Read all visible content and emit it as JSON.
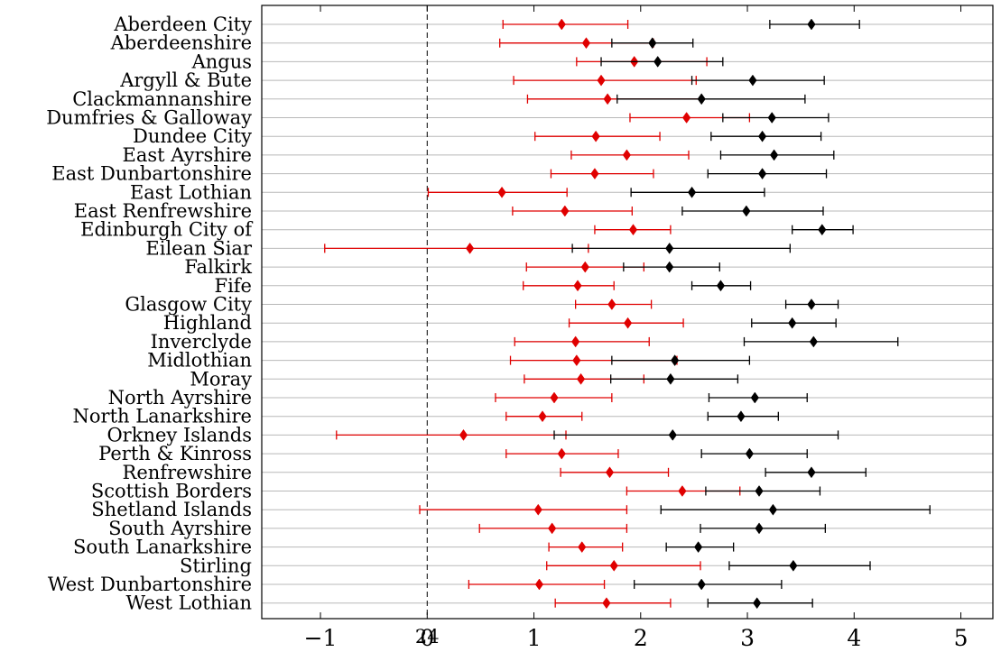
{
  "chart_data": {
    "type": "scatter",
    "title": "",
    "xlabel": "",
    "ylabel": "",
    "xlim": [
      -1.55,
      5.3
    ],
    "grid": "horizontal",
    "reference_line": {
      "x": 0,
      "style": "dashed",
      "label": "24"
    },
    "x_ticks": [
      {
        "value": -1,
        "label": "−1"
      },
      {
        "value": 0,
        "label": "0"
      },
      {
        "value": 1,
        "label": "1"
      },
      {
        "value": 2,
        "label": "2"
      },
      {
        "value": 3,
        "label": "3"
      },
      {
        "value": 4,
        "label": "4"
      },
      {
        "value": 5,
        "label": "5"
      }
    ],
    "categories": [
      "Aberdeen City",
      "Aberdeenshire",
      "Angus",
      "Argyll & Bute",
      "Clackmannanshire",
      "Dumfries & Galloway",
      "Dundee City",
      "East Ayrshire",
      "East Dunbartonshire",
      "East Lothian",
      "East Renfrewshire",
      "Edinburgh  City of",
      "Eilean Siar",
      "Falkirk",
      "Fife",
      "Glasgow City",
      "Highland",
      "Inverclyde",
      "Midlothian",
      "Moray",
      "North Ayrshire",
      "North Lanarkshire",
      "Orkney Islands",
      "Perth & Kinross",
      "Renfrewshire",
      "Scottish Borders",
      "Shetland Islands",
      "South Ayrshire",
      "South Lanarkshire",
      "Stirling",
      "West Dunbartonshire",
      "West Lothian"
    ],
    "series": [
      {
        "color": "#e00000",
        "points": [
          {
            "value": 1.26,
            "low": 0.71,
            "high": 1.88
          },
          {
            "value": 1.49,
            "low": 0.68,
            "high": 2.12
          },
          {
            "value": 1.94,
            "low": 1.4,
            "high": 2.62
          },
          {
            "value": 1.63,
            "low": 0.81,
            "high": 2.52
          },
          {
            "value": 1.69,
            "low": 0.94,
            "high": 2.57
          },
          {
            "value": 2.43,
            "low": 1.9,
            "high": 3.02
          },
          {
            "value": 1.58,
            "low": 1.01,
            "high": 2.18
          },
          {
            "value": 1.87,
            "low": 1.35,
            "high": 2.45
          },
          {
            "value": 1.57,
            "low": 1.16,
            "high": 2.12
          },
          {
            "value": 0.7,
            "low": 0.01,
            "high": 1.31
          },
          {
            "value": 1.29,
            "low": 0.8,
            "high": 1.92
          },
          {
            "value": 1.93,
            "low": 1.57,
            "high": 2.28
          },
          {
            "value": 0.4,
            "low": -0.96,
            "high": 1.51
          },
          {
            "value": 1.48,
            "low": 0.93,
            "high": 2.03
          },
          {
            "value": 1.41,
            "low": 0.9,
            "high": 1.75
          },
          {
            "value": 1.73,
            "low": 1.39,
            "high": 2.1
          },
          {
            "value": 1.88,
            "low": 1.33,
            "high": 2.4
          },
          {
            "value": 1.39,
            "low": 0.82,
            "high": 2.08
          },
          {
            "value": 1.4,
            "low": 0.78,
            "high": 2.34
          },
          {
            "value": 1.44,
            "low": 0.91,
            "high": 2.03
          },
          {
            "value": 1.19,
            "low": 0.64,
            "high": 1.73
          },
          {
            "value": 1.08,
            "low": 0.74,
            "high": 1.45
          },
          {
            "value": 0.34,
            "low": -0.85,
            "high": 1.3
          },
          {
            "value": 1.26,
            "low": 0.74,
            "high": 1.79
          },
          {
            "value": 1.71,
            "low": 1.25,
            "high": 2.26
          },
          {
            "value": 2.39,
            "low": 1.87,
            "high": 2.93
          },
          {
            "value": 1.04,
            "low": -0.07,
            "high": 1.87
          },
          {
            "value": 1.17,
            "low": 0.49,
            "high": 1.87
          },
          {
            "value": 1.45,
            "low": 1.14,
            "high": 1.83
          },
          {
            "value": 1.75,
            "low": 1.12,
            "high": 2.56
          },
          {
            "value": 1.05,
            "low": 0.39,
            "high": 1.66
          },
          {
            "value": 1.68,
            "low": 1.2,
            "high": 2.28
          }
        ]
      },
      {
        "color": "#000000",
        "points": [
          {
            "value": 3.6,
            "low": 3.21,
            "high": 4.05
          },
          {
            "value": 2.11,
            "low": 1.73,
            "high": 2.49
          },
          {
            "value": 2.16,
            "low": 1.63,
            "high": 2.77
          },
          {
            "value": 3.05,
            "low": 2.48,
            "high": 3.72
          },
          {
            "value": 2.57,
            "low": 1.78,
            "high": 3.54
          },
          {
            "value": 3.23,
            "low": 2.77,
            "high": 3.76
          },
          {
            "value": 3.14,
            "low": 2.66,
            "high": 3.69
          },
          {
            "value": 3.25,
            "low": 2.75,
            "high": 3.81
          },
          {
            "value": 3.14,
            "low": 2.63,
            "high": 3.74
          },
          {
            "value": 2.48,
            "low": 1.91,
            "high": 3.16
          },
          {
            "value": 2.99,
            "low": 2.39,
            "high": 3.71
          },
          {
            "value": 3.7,
            "low": 3.42,
            "high": 3.99
          },
          {
            "value": 2.27,
            "low": 1.36,
            "high": 3.4
          },
          {
            "value": 2.27,
            "low": 1.84,
            "high": 2.74
          },
          {
            "value": 2.75,
            "low": 2.48,
            "high": 3.03
          },
          {
            "value": 3.6,
            "low": 3.36,
            "high": 3.85
          },
          {
            "value": 3.42,
            "low": 3.04,
            "high": 3.83
          },
          {
            "value": 3.62,
            "low": 2.97,
            "high": 4.41
          },
          {
            "value": 2.32,
            "low": 1.73,
            "high": 3.02
          },
          {
            "value": 2.28,
            "low": 1.72,
            "high": 2.91
          },
          {
            "value": 3.07,
            "low": 2.64,
            "high": 3.56
          },
          {
            "value": 2.94,
            "low": 2.63,
            "high": 3.29
          },
          {
            "value": 2.3,
            "low": 1.19,
            "high": 3.85
          },
          {
            "value": 3.02,
            "low": 2.57,
            "high": 3.56
          },
          {
            "value": 3.6,
            "low": 3.17,
            "high": 4.11
          },
          {
            "value": 3.11,
            "low": 2.61,
            "high": 3.68
          },
          {
            "value": 3.24,
            "low": 2.19,
            "high": 4.71
          },
          {
            "value": 3.11,
            "low": 2.56,
            "high": 3.73
          },
          {
            "value": 2.54,
            "low": 2.24,
            "high": 2.87
          },
          {
            "value": 3.43,
            "low": 2.83,
            "high": 4.15
          },
          {
            "value": 2.57,
            "low": 1.94,
            "high": 3.32
          },
          {
            "value": 3.09,
            "low": 2.63,
            "high": 3.61
          }
        ]
      }
    ]
  }
}
